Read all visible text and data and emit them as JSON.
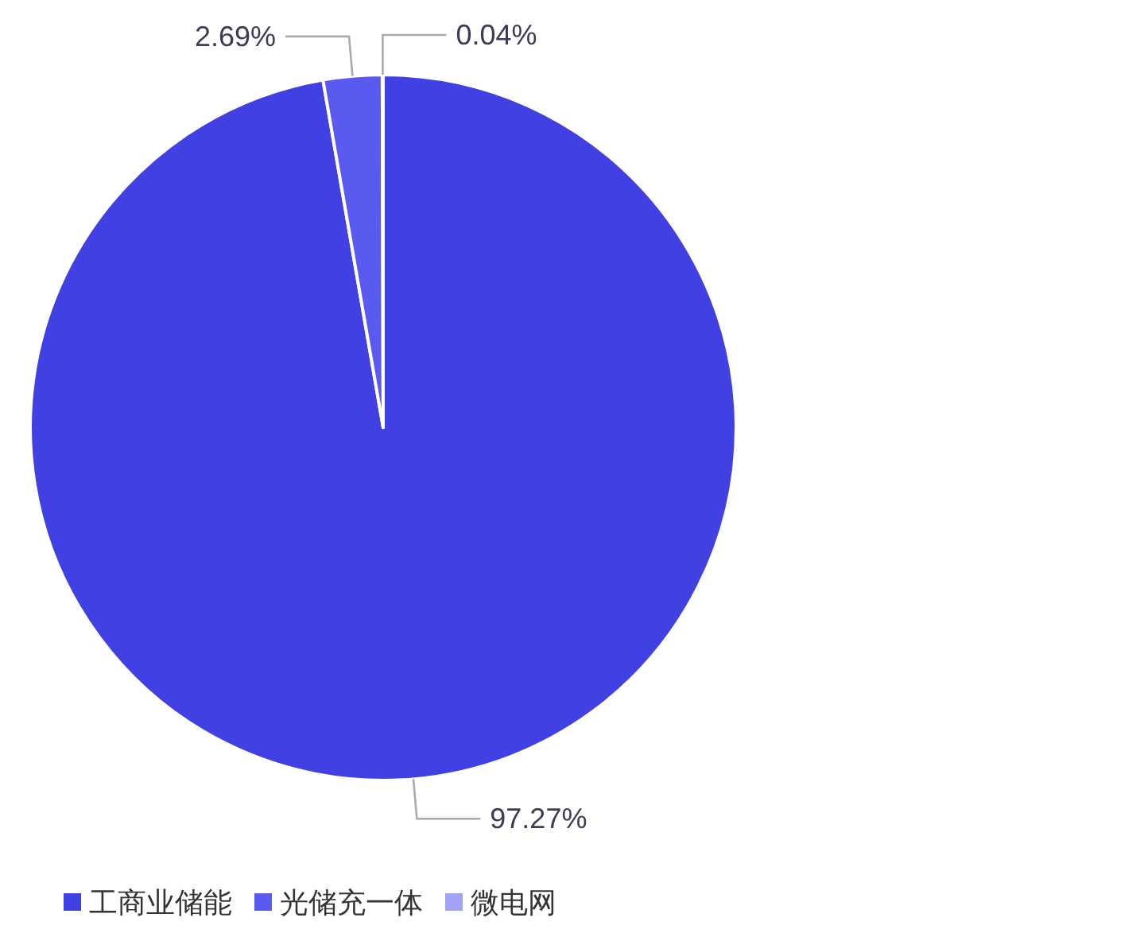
{
  "chart_data": {
    "type": "pie",
    "categories": [
      "工商业储能",
      "光储充一体",
      "微电网"
    ],
    "values": [
      97.27,
      2.69,
      0.04
    ],
    "colors": [
      "#4141e3",
      "#5a5af0",
      "#a3a3f5"
    ],
    "value_labels": [
      "97.27%",
      "2.69%",
      "0.04%"
    ],
    "legend": "bottom"
  }
}
